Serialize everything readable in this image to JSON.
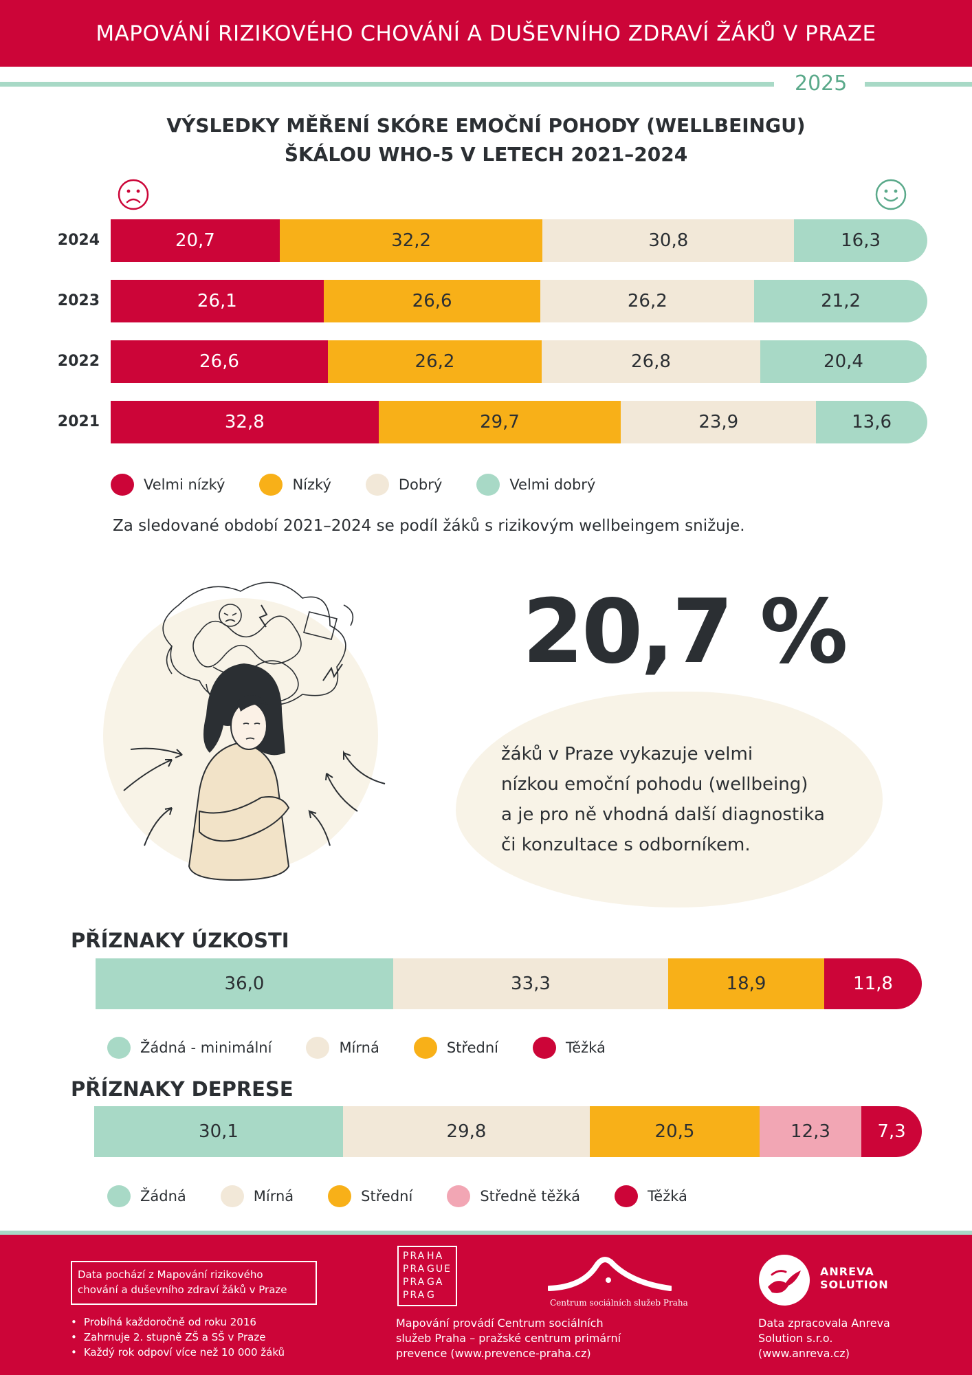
{
  "header": {
    "title": "MAPOVÁNÍ RIZIKOVÉHO CHOVÁNÍ A DUŠEVNÍHO ZDRAVÍ ŽÁKŮ V PRAZE",
    "year": "2025"
  },
  "colors": {
    "brand_red": "#cc0538",
    "very_low": "#cc0538",
    "low": "#f8b018",
    "good": "#f2e8d8",
    "very_good": "#a8d9c6",
    "pink": "#f2a6b4",
    "dark_text": "#2b2f33",
    "green_text": "#5aa98a"
  },
  "chart_data": [
    {
      "type": "bar",
      "orientation": "horizontal-stacked",
      "title": "VÝSLEDKY MĚŘENÍ SKÓRE EMOČNÍ POHODY (WELLBEINGU) ŠKÁLOU WHO-5 V LETECH 2021–2024",
      "title_lines": [
        "VÝSLEDKY MĚŘENÍ SKÓRE EMOČNÍ POHODY (WELLBEINGU)",
        "ŠKÁLOU WHO-5 V LETECH 2021–2024"
      ],
      "categories": [
        "2024",
        "2023",
        "2022",
        "2021"
      ],
      "series": [
        {
          "name": "Velmi nízký",
          "values": [
            20.7,
            26.1,
            26.6,
            32.8
          ],
          "labels": [
            "20,7",
            "26,1",
            "26,6",
            "32,8"
          ]
        },
        {
          "name": "Nízký",
          "values": [
            32.2,
            26.6,
            26.2,
            29.7
          ],
          "labels": [
            "32,2",
            "26,6",
            "26,2",
            "29,7"
          ]
        },
        {
          "name": "Dobrý",
          "values": [
            30.8,
            26.2,
            26.8,
            23.9
          ],
          "labels": [
            "30,8",
            "26,2",
            "26,8",
            "23,9"
          ]
        },
        {
          "name": "Velmi dobrý",
          "values": [
            16.3,
            21.2,
            20.4,
            13.6
          ],
          "labels": [
            "16,3",
            "21,2",
            "20,4",
            "13,6"
          ]
        }
      ],
      "icons": [
        "sad-face-icon",
        "happy-face-icon"
      ],
      "legend_placement": "bottom-left"
    },
    {
      "type": "bar",
      "orientation": "horizontal-stacked",
      "title": "PŘÍZNAKY ÚZKOSTI",
      "series": [
        {
          "name": "Žádná - minimální",
          "value": 36.0,
          "label": "36,0"
        },
        {
          "name": "Mírná",
          "value": 33.3,
          "label": "33,3"
        },
        {
          "name": "Střední",
          "value": 18.9,
          "label": "18,9"
        },
        {
          "name": "Těžká",
          "value": 11.8,
          "label": "11,8"
        }
      ],
      "legend_placement": "bottom-left"
    },
    {
      "type": "bar",
      "orientation": "horizontal-stacked",
      "title": "PŘÍZNAKY DEPRESE",
      "series": [
        {
          "name": "Žádná",
          "value": 30.1,
          "label": "30,1"
        },
        {
          "name": "Mírná",
          "value": 29.8,
          "label": "29,8"
        },
        {
          "name": "Střední",
          "value": 20.5,
          "label": "20,5"
        },
        {
          "name": "Středně těžká",
          "value": 12.3,
          "label": "12,3"
        },
        {
          "name": "Těžká",
          "value": 7.3,
          "label": "7,3"
        }
      ],
      "legend_placement": "bottom-left"
    }
  ],
  "note": "Za sledované období 2021–2024 se podíl žáků s rizikovým wellbeingem snižuje.",
  "highlight": {
    "value": "20,7 %",
    "text_lines": [
      "žáků  v Praze vykazuje velmi",
      "nízkou emoční pohodu (wellbeing)",
      "a je pro ně vhodná další diagnostika",
      "či konzultace s odborníkem."
    ]
  },
  "footer": {
    "box_lines": [
      "Data pochází z Mapování rizikového",
      "chování a duševního zdraví žáků v Praze"
    ],
    "bullets": [
      "Probíhá každoročně od roku 2016",
      "Zahrnuje 2. stupně ZŠ a SŠ v Praze",
      "Každý rok odpoví více než 10 000 žáků"
    ],
    "praha_logo": [
      "PRA",
      "HA",
      "PRA",
      "GUE",
      "PRA",
      "GA",
      "PRA",
      "G"
    ],
    "center_caption": "Centrum sociálních služeb Praha",
    "center_lines": [
      "Mapování provádí Centrum sociálních",
      "služeb Praha – pražské centrum primární",
      "prevence (www.prevence-praha.cz)"
    ],
    "anreva_name": [
      "ANREVA",
      "SOLUTION"
    ],
    "anreva_lines": [
      "Data zpracovala Anreva",
      "Solution s.r.o.",
      "(www.anreva.cz)"
    ]
  }
}
